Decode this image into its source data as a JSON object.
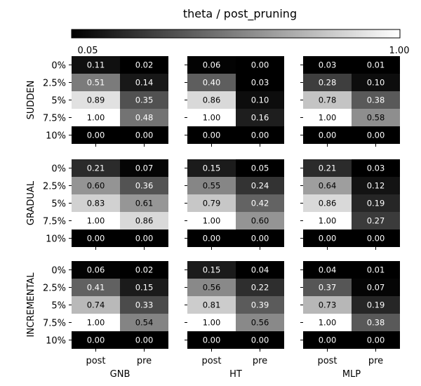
{
  "chart_data": {
    "type": "heatmap",
    "title": "theta / post_pruning",
    "colormap": "gray",
    "colorbar": {
      "min": 0.05,
      "max": 1.0,
      "min_label": "0.05",
      "max_label": "1.00"
    },
    "row_labels": [
      "0%",
      "2.5%",
      "5%",
      "7.5%",
      "10%"
    ],
    "col_labels": [
      "post",
      "pre"
    ],
    "drift_types": [
      "SUDDEN",
      "GRADUAL",
      "INCREMENTAL"
    ],
    "models": [
      "GNB",
      "HT",
      "MLP"
    ],
    "panels": [
      [
        {
          "values": [
            [
              0.11,
              0.02
            ],
            [
              0.51,
              0.14
            ],
            [
              0.89,
              0.35
            ],
            [
              1.0,
              0.48
            ],
            [
              0.0,
              0.0
            ]
          ]
        },
        {
          "values": [
            [
              0.06,
              0.0
            ],
            [
              0.4,
              0.03
            ],
            [
              0.86,
              0.1
            ],
            [
              1.0,
              0.16
            ],
            [
              0.0,
              0.0
            ]
          ]
        },
        {
          "values": [
            [
              0.03,
              0.01
            ],
            [
              0.28,
              0.1
            ],
            [
              0.78,
              0.38
            ],
            [
              1.0,
              0.58
            ],
            [
              0.0,
              0.0
            ]
          ]
        }
      ],
      [
        {
          "values": [
            [
              0.21,
              0.07
            ],
            [
              0.6,
              0.36
            ],
            [
              0.83,
              0.61
            ],
            [
              1.0,
              0.86
            ],
            [
              0.0,
              0.0
            ]
          ]
        },
        {
          "values": [
            [
              0.15,
              0.05
            ],
            [
              0.55,
              0.24
            ],
            [
              0.79,
              0.42
            ],
            [
              1.0,
              0.6
            ],
            [
              0.0,
              0.0
            ]
          ]
        },
        {
          "values": [
            [
              0.21,
              0.03
            ],
            [
              0.64,
              0.12
            ],
            [
              0.86,
              0.19
            ],
            [
              1.0,
              0.27
            ],
            [
              0.0,
              0.0
            ]
          ]
        }
      ],
      [
        {
          "values": [
            [
              0.06,
              0.02
            ],
            [
              0.41,
              0.15
            ],
            [
              0.74,
              0.33
            ],
            [
              1.0,
              0.54
            ],
            [
              0.0,
              0.0
            ]
          ]
        },
        {
          "values": [
            [
              0.15,
              0.04
            ],
            [
              0.56,
              0.22
            ],
            [
              0.81,
              0.39
            ],
            [
              1.0,
              0.56
            ],
            [
              0.0,
              0.0
            ]
          ]
        },
        {
          "values": [
            [
              0.04,
              0.01
            ],
            [
              0.37,
              0.07
            ],
            [
              0.73,
              0.19
            ],
            [
              1.0,
              0.38
            ],
            [
              0.0,
              0.0
            ]
          ]
        }
      ]
    ]
  }
}
